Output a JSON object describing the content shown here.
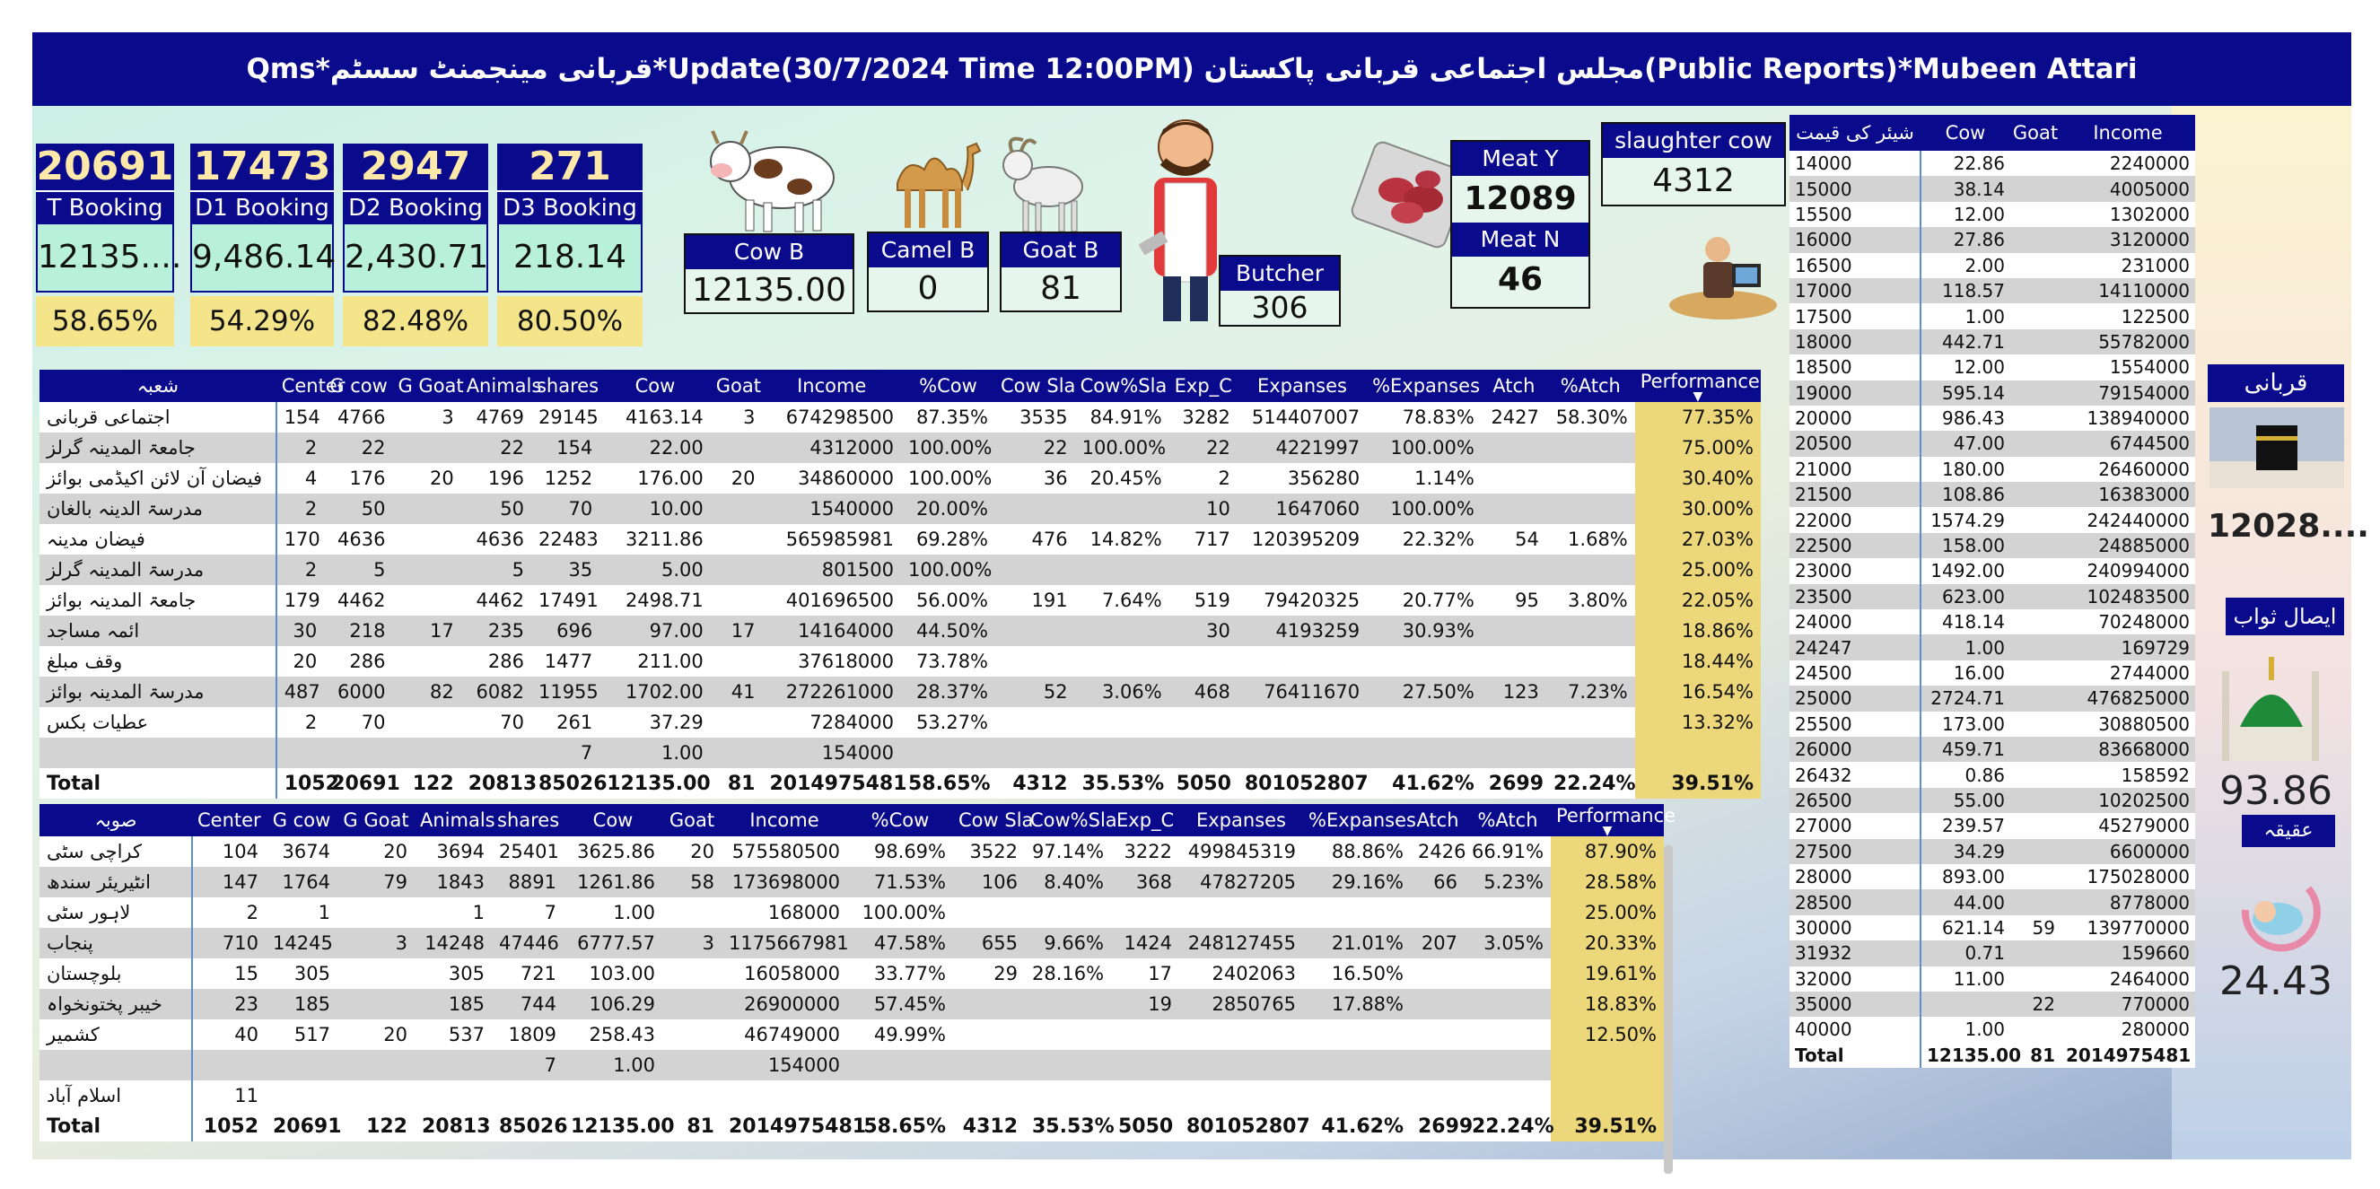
{
  "title": "Qms*قربانی مینجمنٹ سسٹم*Update(30/7/2024 Time 12:00PM) مجلس اجتماعی قربانی پاکستان(Public Reports)*Mubeen Attari",
  "kpis": [
    {
      "num": "20691",
      "label": "T Booking",
      "value": "12135....",
      "pct": "58.65%"
    },
    {
      "num": "17473",
      "label": "D1 Booking",
      "value": "9,486.14",
      "pct": "54.29%"
    },
    {
      "num": "2947",
      "label": "D2 Booking",
      "value": "2,430.71",
      "pct": "82.48%"
    },
    {
      "num": "271",
      "label": "D3 Booking",
      "value": "218.14",
      "pct": "80.50%"
    }
  ],
  "cards": {
    "cow_b": {
      "label": "Cow B",
      "value": "12135.00"
    },
    "camel_b": {
      "label": "Camel B",
      "value": "0"
    },
    "goat_b": {
      "label": "Goat B",
      "value": "81"
    },
    "butcher": {
      "label": "Butcher",
      "value": "306"
    },
    "meat_y": {
      "label": "Meat Y",
      "value": "12089"
    },
    "meat_n": {
      "label": "Meat N",
      "value": "46"
    },
    "slaughter_cow": {
      "label": "slaughter cow",
      "value": "4312"
    }
  },
  "colors": {
    "header": "#0a0a8c",
    "performance": "#ecd77a",
    "kpi_value_bg": "#b8f0dc",
    "kpi_pct_bg": "#f5e58a"
  },
  "dept_table": {
    "columns": [
      "شعبہ",
      "Center",
      "G cow",
      "G Goat",
      "Animals",
      "shares",
      "Cow",
      "Goat",
      "Income",
      "%Cow",
      "Cow Sla",
      "Cow%Sla",
      "Exp_C",
      "Expanses",
      "%Expanses",
      "Atch",
      "%Atch",
      "Performance"
    ],
    "rows": [
      [
        "اجتماعی قربانی",
        "154",
        "4766",
        "3",
        "4769",
        "29145",
        "4163.14",
        "3",
        "674298500",
        "87.35%",
        "3535",
        "84.91%",
        "3282",
        "514407007",
        "78.83%",
        "2427",
        "58.30%",
        "77.35%"
      ],
      [
        "جامعۃ المدینہ گرلز",
        "2",
        "22",
        "",
        "22",
        "154",
        "22.00",
        "",
        "4312000",
        "100.00%",
        "22",
        "100.00%",
        "22",
        "4221997",
        "100.00%",
        "",
        "",
        "75.00%"
      ],
      [
        "فیضان آن لائن اکیڈمی بوائز",
        "4",
        "176",
        "20",
        "196",
        "1252",
        "176.00",
        "20",
        "34860000",
        "100.00%",
        "36",
        "20.45%",
        "2",
        "356280",
        "1.14%",
        "",
        "",
        "30.40%"
      ],
      [
        "مدرسۃ الدینہ بالغان",
        "2",
        "50",
        "",
        "50",
        "70",
        "10.00",
        "",
        "1540000",
        "20.00%",
        "",
        "",
        "10",
        "1647060",
        "100.00%",
        "",
        "",
        "30.00%"
      ],
      [
        "فیضان مدینہ",
        "170",
        "4636",
        "",
        "4636",
        "22483",
        "3211.86",
        "",
        "565985981",
        "69.28%",
        "476",
        "14.82%",
        "717",
        "120395209",
        "22.32%",
        "54",
        "1.68%",
        "27.03%"
      ],
      [
        "مدرسۃ المدینہ گرلز",
        "2",
        "5",
        "",
        "5",
        "35",
        "5.00",
        "",
        "801500",
        "100.00%",
        "",
        "",
        "",
        "",
        "",
        "",
        "",
        "25.00%"
      ],
      [
        "جامعۃ المدینہ بوائز",
        "179",
        "4462",
        "",
        "4462",
        "17491",
        "2498.71",
        "",
        "401696500",
        "56.00%",
        "191",
        "7.64%",
        "519",
        "79420325",
        "20.77%",
        "95",
        "3.80%",
        "22.05%"
      ],
      [
        "ائمہ مساجد",
        "30",
        "218",
        "17",
        "235",
        "696",
        "97.00",
        "17",
        "14164000",
        "44.50%",
        "",
        "",
        "30",
        "4193259",
        "30.93%",
        "",
        "",
        "18.86%"
      ],
      [
        "وقف مبلغ",
        "20",
        "286",
        "",
        "286",
        "1477",
        "211.00",
        "",
        "37618000",
        "73.78%",
        "",
        "",
        "",
        "",
        "",
        "",
        "",
        "18.44%"
      ],
      [
        "مدرسۃ المدینہ بوائز",
        "487",
        "6000",
        "82",
        "6082",
        "11955",
        "1702.00",
        "41",
        "272261000",
        "28.37%",
        "52",
        "3.06%",
        "468",
        "76411670",
        "27.50%",
        "123",
        "7.23%",
        "16.54%"
      ],
      [
        "عطیات بکس",
        "2",
        "70",
        "",
        "70",
        "261",
        "37.29",
        "",
        "7284000",
        "53.27%",
        "",
        "",
        "",
        "",
        "",
        "",
        "",
        "13.32%"
      ],
      [
        "",
        "",
        "",
        "",
        "",
        "7",
        "1.00",
        "",
        "154000",
        "",
        "",
        "",
        "",
        "",
        "",
        "",
        "",
        ""
      ]
    ],
    "total": [
      "Total",
      "1052",
      "20691",
      "122",
      "20813",
      "85026",
      "12135.00",
      "81",
      "2014975481",
      "58.65%",
      "4312",
      "35.53%",
      "5050",
      "801052807",
      "41.62%",
      "2699",
      "22.24%",
      "39.51%"
    ]
  },
  "prov_table": {
    "columns": [
      "صوبہ",
      "Center",
      "G cow",
      "G Goat",
      "Animals",
      "shares",
      "Cow",
      "Goat",
      "Income",
      "%Cow",
      "Cow Sla",
      "Cow%Sla",
      "Exp_C",
      "Expanses",
      "%Expanses",
      "Atch",
      "%Atch",
      "Performance"
    ],
    "rows": [
      [
        "کراچی سٹی",
        "104",
        "3674",
        "20",
        "3694",
        "25401",
        "3625.86",
        "20",
        "575580500",
        "98.69%",
        "3522",
        "97.14%",
        "3222",
        "499845319",
        "88.86%",
        "2426",
        "66.91%",
        "87.90%"
      ],
      [
        "انٹیریئر سندھ",
        "147",
        "1764",
        "79",
        "1843",
        "8891",
        "1261.86",
        "58",
        "173698000",
        "71.53%",
        "106",
        "8.40%",
        "368",
        "47827205",
        "29.16%",
        "66",
        "5.23%",
        "28.58%"
      ],
      [
        "لاہور سٹی",
        "2",
        "1",
        "",
        "1",
        "7",
        "1.00",
        "",
        "168000",
        "100.00%",
        "",
        "",
        "",
        "",
        "",
        "",
        "",
        "25.00%"
      ],
      [
        "پنجاب",
        "710",
        "14245",
        "3",
        "14248",
        "47446",
        "6777.57",
        "3",
        "1175667981",
        "47.58%",
        "655",
        "9.66%",
        "1424",
        "248127455",
        "21.01%",
        "207",
        "3.05%",
        "20.33%"
      ],
      [
        "بلوچستان",
        "15",
        "305",
        "",
        "305",
        "721",
        "103.00",
        "",
        "16058000",
        "33.77%",
        "29",
        "28.16%",
        "17",
        "2402063",
        "16.50%",
        "",
        "",
        "19.61%"
      ],
      [
        "خیبر پختونخواہ",
        "23",
        "185",
        "",
        "185",
        "744",
        "106.29",
        "",
        "26900000",
        "57.45%",
        "",
        "",
        "19",
        "2850765",
        "17.88%",
        "",
        "",
        "18.83%"
      ],
      [
        "کشمیر",
        "40",
        "517",
        "20",
        "537",
        "1809",
        "258.43",
        "",
        "46749000",
        "49.99%",
        "",
        "",
        "",
        "",
        "",
        "",
        "",
        "12.50%"
      ],
      [
        "",
        "",
        "",
        "",
        "",
        "7",
        "1.00",
        "",
        "154000",
        "",
        "",
        "",
        "",
        "",
        "",
        "",
        "",
        ""
      ],
      [
        "اسلام آباد",
        "11",
        "",
        "",
        "",
        "",
        "",
        "",
        "",
        "",
        "",
        "",
        "",
        "",
        "",
        "",
        "",
        ""
      ]
    ],
    "total": [
      "Total",
      "1052",
      "20691",
      "122",
      "20813",
      "85026",
      "12135.00",
      "81",
      "2014975481",
      "58.65%",
      "4312",
      "35.53%",
      "5050",
      "801052807",
      "41.62%",
      "2699",
      "22.24%",
      "39.51%"
    ]
  },
  "price_table": {
    "columns": [
      "شیئر کی قیمت",
      "Cow",
      "Goat",
      "Income"
    ],
    "rows": [
      [
        "14000",
        "22.86",
        "",
        "2240000"
      ],
      [
        "15000",
        "38.14",
        "",
        "4005000"
      ],
      [
        "15500",
        "12.00",
        "",
        "1302000"
      ],
      [
        "16000",
        "27.86",
        "",
        "3120000"
      ],
      [
        "16500",
        "2.00",
        "",
        "231000"
      ],
      [
        "17000",
        "118.57",
        "",
        "14110000"
      ],
      [
        "17500",
        "1.00",
        "",
        "122500"
      ],
      [
        "18000",
        "442.71",
        "",
        "55782000"
      ],
      [
        "18500",
        "12.00",
        "",
        "1554000"
      ],
      [
        "19000",
        "595.14",
        "",
        "79154000"
      ],
      [
        "20000",
        "986.43",
        "",
        "138940000"
      ],
      [
        "20500",
        "47.00",
        "",
        "6744500"
      ],
      [
        "21000",
        "180.00",
        "",
        "26460000"
      ],
      [
        "21500",
        "108.86",
        "",
        "16383000"
      ],
      [
        "22000",
        "1574.29",
        "",
        "242440000"
      ],
      [
        "22500",
        "158.00",
        "",
        "24885000"
      ],
      [
        "23000",
        "1492.00",
        "",
        "240994000"
      ],
      [
        "23500",
        "623.00",
        "",
        "102483500"
      ],
      [
        "24000",
        "418.14",
        "",
        "70248000"
      ],
      [
        "24247",
        "1.00",
        "",
        "169729"
      ],
      [
        "24500",
        "16.00",
        "",
        "2744000"
      ],
      [
        "25000",
        "2724.71",
        "",
        "476825000"
      ],
      [
        "25500",
        "173.00",
        "",
        "30880500"
      ],
      [
        "26000",
        "459.71",
        "",
        "83668000"
      ],
      [
        "26432",
        "0.86",
        "",
        "158592"
      ],
      [
        "26500",
        "55.00",
        "",
        "10202500"
      ],
      [
        "27000",
        "239.57",
        "",
        "45279000"
      ],
      [
        "27500",
        "34.29",
        "",
        "6600000"
      ],
      [
        "28000",
        "893.00",
        "",
        "175028000"
      ],
      [
        "28500",
        "44.00",
        "",
        "8778000"
      ],
      [
        "30000",
        "621.14",
        "59",
        "139770000"
      ],
      [
        "31932",
        "0.71",
        "",
        "159660"
      ],
      [
        "32000",
        "11.00",
        "",
        "2464000"
      ],
      [
        "35000",
        "",
        "22",
        "770000"
      ],
      [
        "40000",
        "1.00",
        "",
        "280000"
      ]
    ],
    "total": [
      "Total",
      "12135.00",
      "81",
      "2014975481"
    ]
  },
  "right_panel": {
    "qurbani_label": "قربانی",
    "qurbani_value": "12028....",
    "isal_label": "ایصال ثواب",
    "isal_value": "93.86",
    "aqiqa_label": "عقیقہ",
    "aqiqa_value": "24.43"
  },
  "icons": [
    "cow-icon",
    "camel-icon",
    "goat-icon",
    "butcher-icon",
    "meat-icon",
    "office-worker-icon",
    "kaaba-icon",
    "green-dome-icon",
    "baby-icon"
  ]
}
